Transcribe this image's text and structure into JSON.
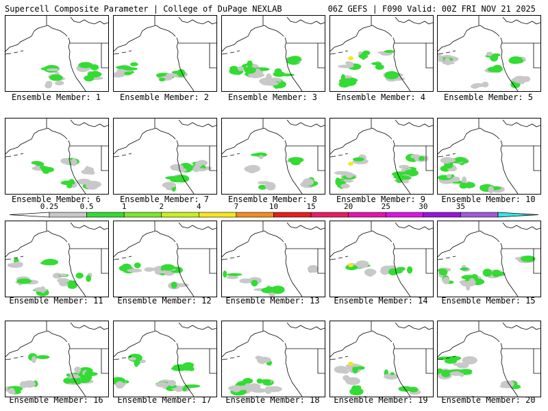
{
  "header": {
    "title_left": "Supercell Composite Parameter | College of DuPage NEXLAB",
    "title_right": "06Z GEFS | F090 Valid: 00Z FRI NOV 21 2025"
  },
  "panel_caption_prefix": "Ensemble Member:",
  "members": [
    {
      "label": "Ensemble Member: 1"
    },
    {
      "label": "Ensemble Member: 2"
    },
    {
      "label": "Ensemble Member: 3"
    },
    {
      "label": "Ensemble Member: 4"
    },
    {
      "label": "Ensemble Member: 5"
    },
    {
      "label": "Ensemble Member: 6"
    },
    {
      "label": "Ensemble Member: 7"
    },
    {
      "label": "Ensemble Member: 8"
    },
    {
      "label": "Ensemble Member: 9"
    },
    {
      "label": "Ensemble Member: 10"
    },
    {
      "label": "Ensemble Member: 11"
    },
    {
      "label": "Ensemble Member: 12"
    },
    {
      "label": "Ensemble Member: 13"
    },
    {
      "label": "Ensemble Member: 14"
    },
    {
      "label": "Ensemble Member: 15"
    },
    {
      "label": "Ensemble Member: 16"
    },
    {
      "label": "Ensemble Member: 17"
    },
    {
      "label": "Ensemble Member: 18"
    },
    {
      "label": "Ensemble Member: 19"
    },
    {
      "label": "Ensemble Member: 20"
    }
  ],
  "colorbar": {
    "labels": [
      "0.25",
      "0.5",
      "1",
      "2",
      "4",
      "7",
      "10",
      "15",
      "20",
      "25",
      "30",
      "35"
    ],
    "colors": [
      "#c8c8c8",
      "#32dc32",
      "#7ee628",
      "#c8f01e",
      "#f5e61e",
      "#f08c1e",
      "#e61e1e",
      "#e61e64",
      "#e614aa",
      "#dc14e6",
      "#9614dc",
      "#a05adc",
      "#32e6e6"
    ]
  }
}
